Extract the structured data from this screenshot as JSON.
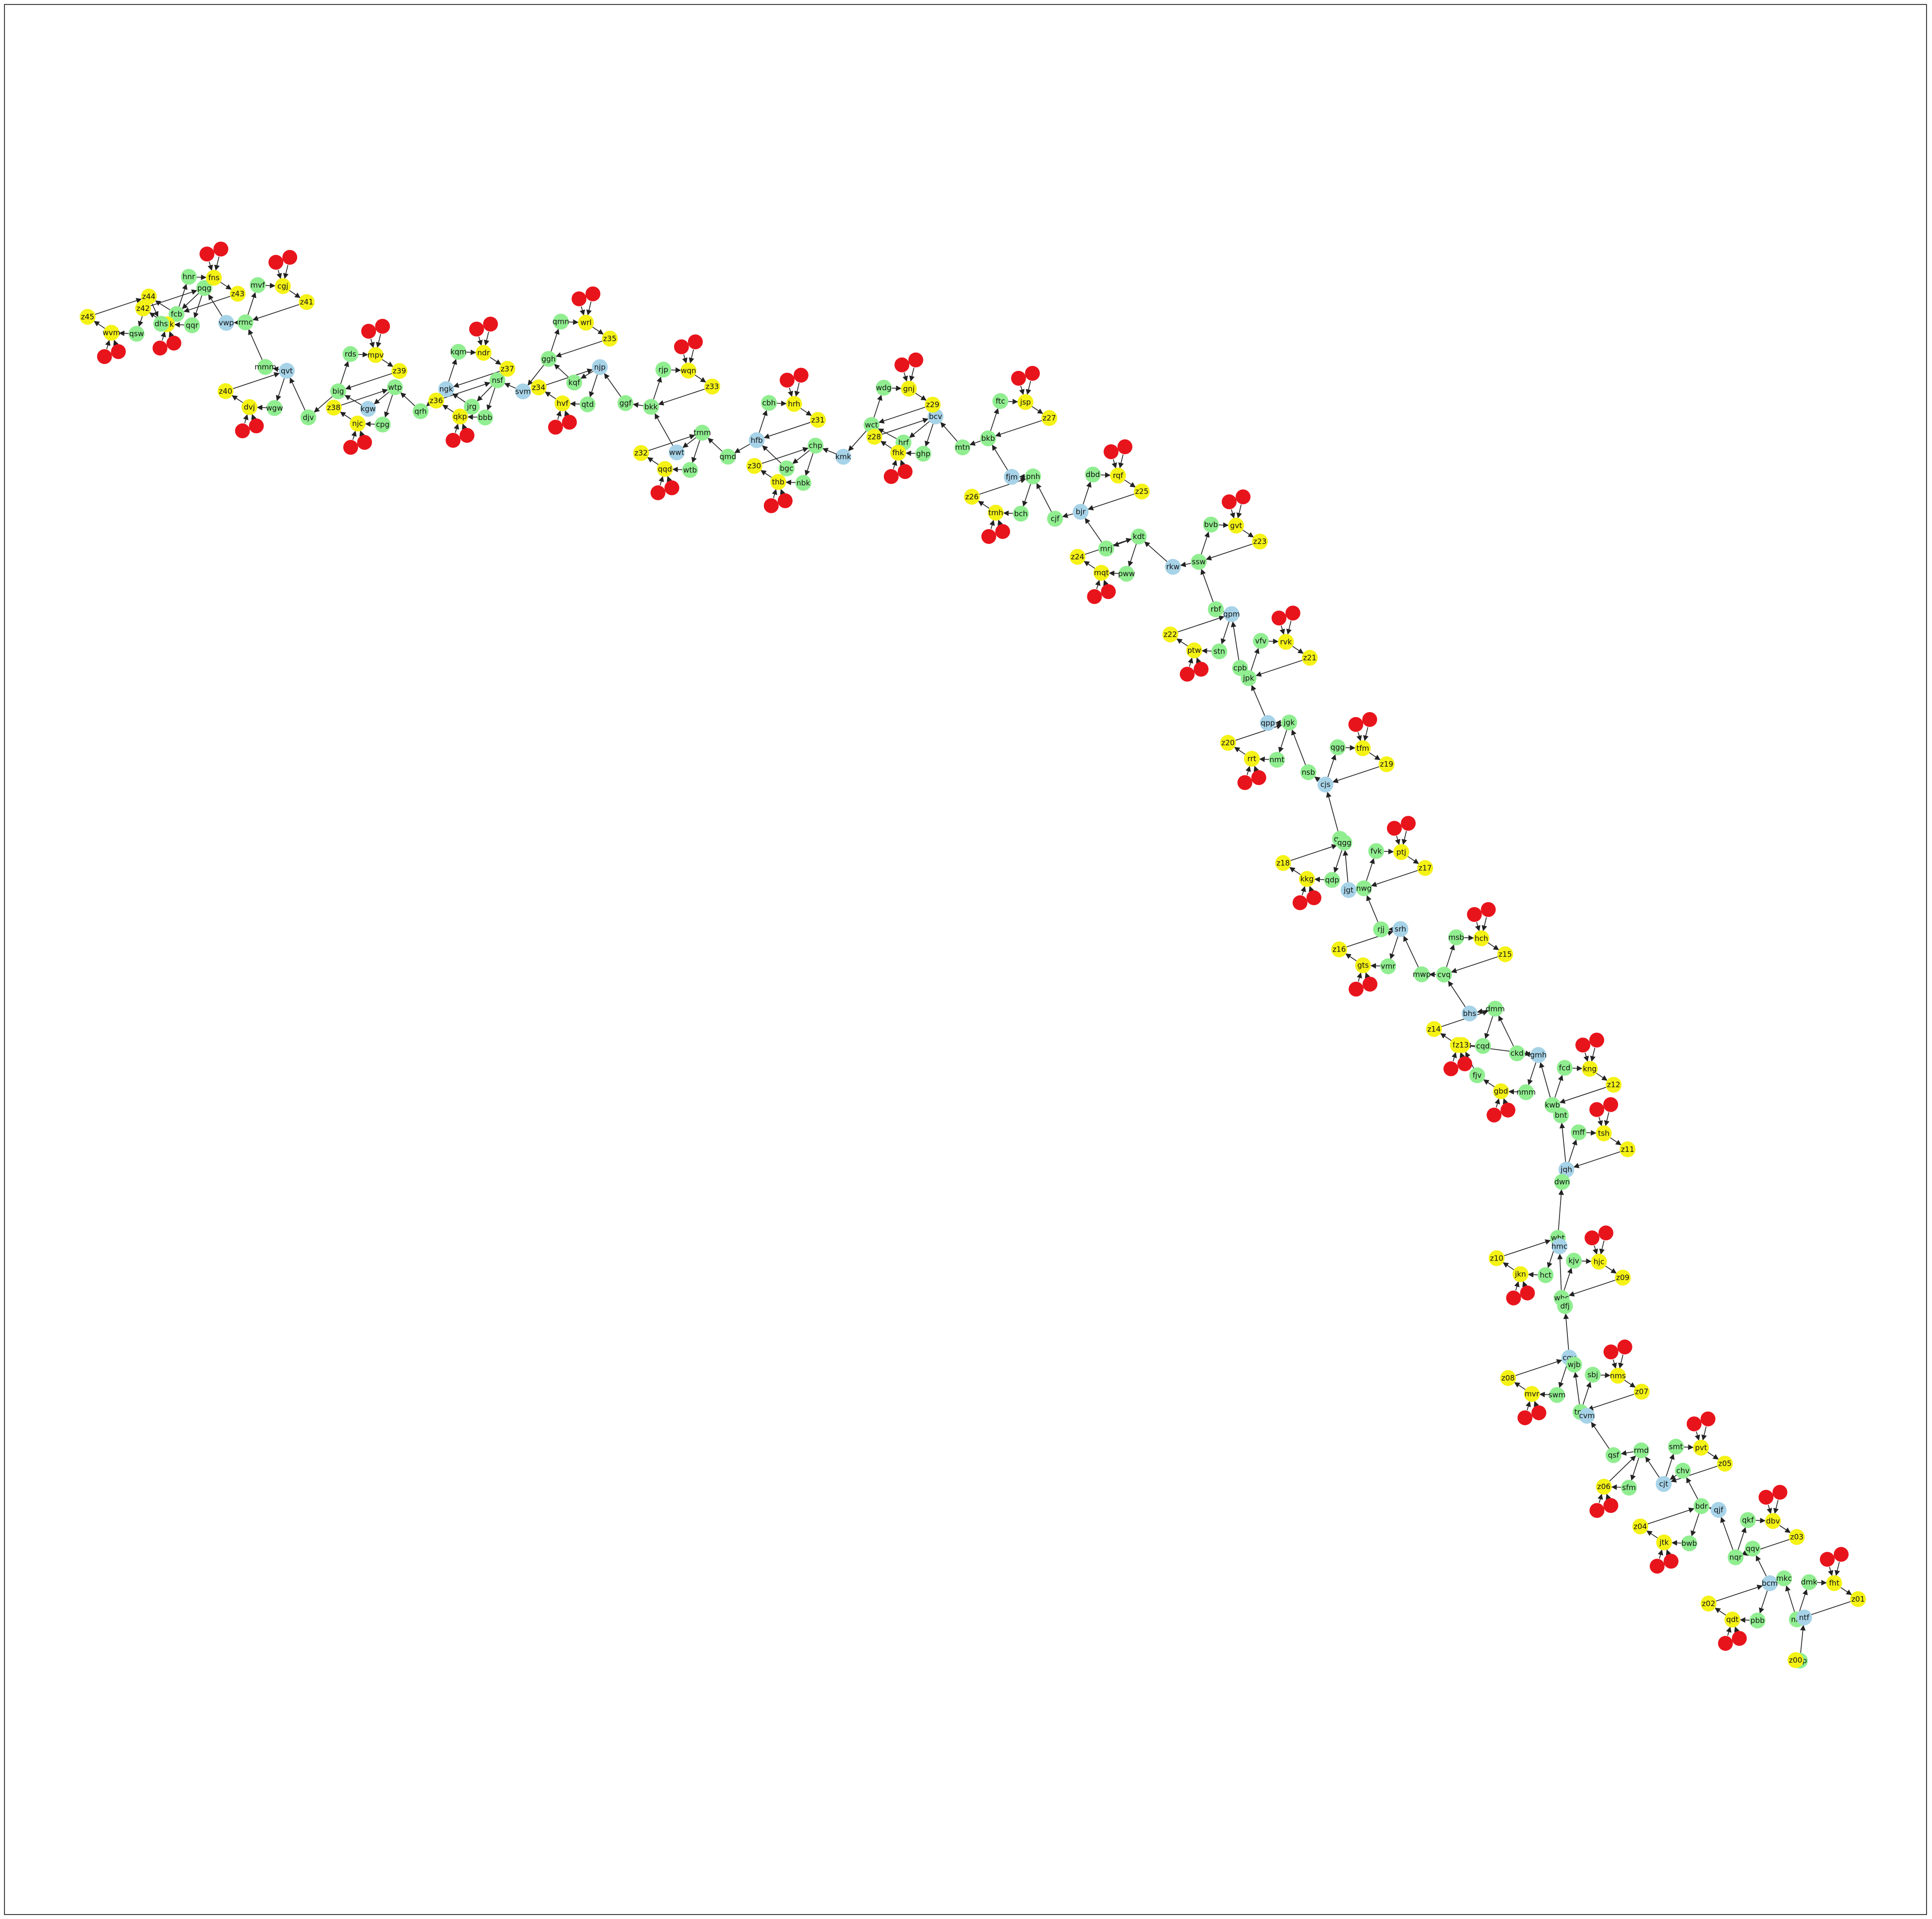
{
  "colors": {
    "red": "#e8141c",
    "yellow": "#f5f216",
    "green": "#90ee90",
    "blue": "#a7d3e8",
    "edge": "#222222"
  },
  "chain": [
    "z44",
    "fcb",
    "pqg",
    "vwp",
    "rmc",
    "mmm",
    "qvt",
    "djv",
    "big",
    "kgw",
    "wtp",
    "qrh",
    "ngk",
    "jrg",
    "nsf",
    "svm",
    "ggh",
    "kqf",
    "njp",
    "ggf",
    "bkk",
    "wwt",
    "tmm",
    "qmd",
    "hfb",
    "bgc",
    "chp",
    "kmk",
    "wct",
    "hrf",
    "bcv",
    "mtn",
    "bkb",
    "fjm",
    "pnh",
    "cjf",
    "bjr",
    "mrj",
    "kdt",
    "rkw",
    "ssw",
    "rbf",
    "qpm",
    "cpb",
    "jpk",
    "qpp",
    "jgk",
    "nsb",
    "cjs",
    "qqt",
    "qgg",
    "jgt",
    "nwg",
    "rjj",
    "srh",
    "mwp",
    "cvq",
    "bhs",
    "dmm",
    "ckd",
    "gmh",
    "kwb",
    "bnt",
    "jqh",
    "dwn",
    "wbt",
    "hmc",
    "whc",
    "dfj",
    "cgv",
    "wjb",
    "tnp",
    "cvm",
    "qsf",
    "rmd",
    "cjt",
    "chv",
    "bdr",
    "qjf",
    "nqr",
    "qqv",
    "bcm",
    "mkc",
    "nrs",
    "ntf",
    "nqp",
    "z00"
  ],
  "branches": [
    {
      "hub": "z44",
      "nodes": [
        "qsw",
        "wvm",
        "z45"
      ],
      "leaves": [
        "dhs"
      ]
    },
    {
      "hub": "fcb",
      "nodes": [
        "hnr",
        "fns",
        "z43"
      ],
      "leaves": []
    },
    {
      "hub": "pqg",
      "nodes": [
        "qqr",
        "hdk",
        "z42"
      ],
      "leaves": []
    },
    {
      "hub": "rmc",
      "nodes": [
        "mvf",
        "cgj",
        "z41"
      ],
      "leaves": []
    },
    {
      "hub": "qvt",
      "nodes": [
        "wgw",
        "dvj",
        "z40"
      ],
      "leaves": []
    },
    {
      "hub": "big",
      "nodes": [
        "rds",
        "mpv",
        "z39"
      ],
      "leaves": []
    },
    {
      "hub": "wtp",
      "nodes": [
        "cpg",
        "njc",
        "z38"
      ],
      "leaves": []
    },
    {
      "hub": "ngk",
      "nodes": [
        "kqm",
        "ndr",
        "z37"
      ],
      "leaves": []
    },
    {
      "hub": "nsf",
      "nodes": [
        "bbb",
        "qkp",
        "z36"
      ],
      "leaves": []
    },
    {
      "hub": "ggh",
      "nodes": [
        "qmn",
        "wrl",
        "z35"
      ],
      "leaves": []
    },
    {
      "hub": "njp",
      "nodes": [
        "qtd",
        "hvf",
        "z34"
      ],
      "leaves": []
    },
    {
      "hub": "bkk",
      "nodes": [
        "rjp",
        "wqn",
        "z33"
      ],
      "leaves": []
    },
    {
      "hub": "tmm",
      "nodes": [
        "wtb",
        "qqd",
        "z32"
      ],
      "leaves": []
    },
    {
      "hub": "hfb",
      "nodes": [
        "cbh",
        "hrh",
        "z31"
      ],
      "leaves": []
    },
    {
      "hub": "chp",
      "nodes": [
        "nbk",
        "thb",
        "z30"
      ],
      "leaves": []
    },
    {
      "hub": "wct",
      "nodes": [
        "wdg",
        "gnj",
        "z29"
      ],
      "leaves": []
    },
    {
      "hub": "bcv",
      "nodes": [
        "ghp",
        "fhk",
        "z28"
      ],
      "leaves": []
    },
    {
      "hub": "bkb",
      "nodes": [
        "ftc",
        "jsp",
        "z27"
      ],
      "leaves": []
    },
    {
      "hub": "pnh",
      "nodes": [
        "bch",
        "tmh",
        "z26"
      ],
      "leaves": []
    },
    {
      "hub": "bjr",
      "nodes": [
        "dbd",
        "rqf",
        "z25"
      ],
      "leaves": []
    },
    {
      "hub": "kdt",
      "nodes": [
        "pww",
        "mqt",
        "z24"
      ],
      "leaves": []
    },
    {
      "hub": "ssw",
      "nodes": [
        "bvb",
        "gvt",
        "z23"
      ],
      "leaves": []
    },
    {
      "hub": "qpm",
      "nodes": [
        "stn",
        "ptw",
        "z22"
      ],
      "leaves": []
    },
    {
      "hub": "jpk",
      "nodes": [
        "vfv",
        "rvk",
        "z21"
      ],
      "leaves": []
    },
    {
      "hub": "jgk",
      "nodes": [
        "nmt",
        "rrt",
        "z20"
      ],
      "leaves": []
    },
    {
      "hub": "cjs",
      "nodes": [
        "qgg2",
        "tfm",
        "z19"
      ],
      "leaves": []
    },
    {
      "hub": "qgg",
      "nodes": [
        "qdp",
        "kkg",
        "z18"
      ],
      "leaves": []
    },
    {
      "hub": "nwg",
      "nodes": [
        "fvk",
        "ptj",
        "z17"
      ],
      "leaves": []
    },
    {
      "hub": "srh",
      "nodes": [
        "vmr",
        "gts",
        "z16"
      ],
      "leaves": []
    },
    {
      "hub": "cvq",
      "nodes": [
        "msb",
        "hch",
        "z15"
      ],
      "leaves": []
    },
    {
      "hub": "dmm",
      "nodes": [
        "cqd",
        "fgr",
        "z14"
      ],
      "leaves": []
    },
    {
      "hub": "kwb",
      "nodes": [
        "fcd",
        "kng",
        "z12"
      ],
      "leaves": []
    },
    {
      "hub": "gmh",
      "nodes": [
        "nmm",
        "gbd",
        "fjv",
        "z13"
      ],
      "leaves": []
    },
    {
      "hub": "jqh",
      "nodes": [
        "mff",
        "tsh",
        "z11"
      ],
      "leaves": []
    },
    {
      "hub": "wbt",
      "nodes": [
        "hct",
        "jkn",
        "z10"
      ],
      "leaves": []
    },
    {
      "hub": "whc",
      "nodes": [
        "kjv",
        "hjc",
        "z09"
      ],
      "leaves": []
    },
    {
      "hub": "cgv",
      "nodes": [
        "swm",
        "mvr",
        "z08"
      ],
      "leaves": []
    },
    {
      "hub": "tnp",
      "nodes": [
        "sbj",
        "nms",
        "z07"
      ],
      "leaves": []
    },
    {
      "hub": "rmd",
      "nodes": [
        "sfm",
        "z06"
      ],
      "leaves": []
    },
    {
      "hub": "cjt",
      "nodes": [
        "smt",
        "pvt",
        "z05"
      ],
      "leaves": []
    },
    {
      "hub": "bdr",
      "nodes": [
        "bwb",
        "jtk",
        "z04"
      ],
      "leaves": []
    },
    {
      "hub": "nqr",
      "nodes": [
        "qkf",
        "dbv",
        "z03"
      ],
      "leaves": []
    },
    {
      "hub": "bcm",
      "nodes": [
        "pbb",
        "qdt",
        "z02"
      ],
      "leaves": []
    },
    {
      "hub": "nrs",
      "nodes": [
        "dmk",
        "fht",
        "z01"
      ],
      "leaves": []
    }
  ]
}
